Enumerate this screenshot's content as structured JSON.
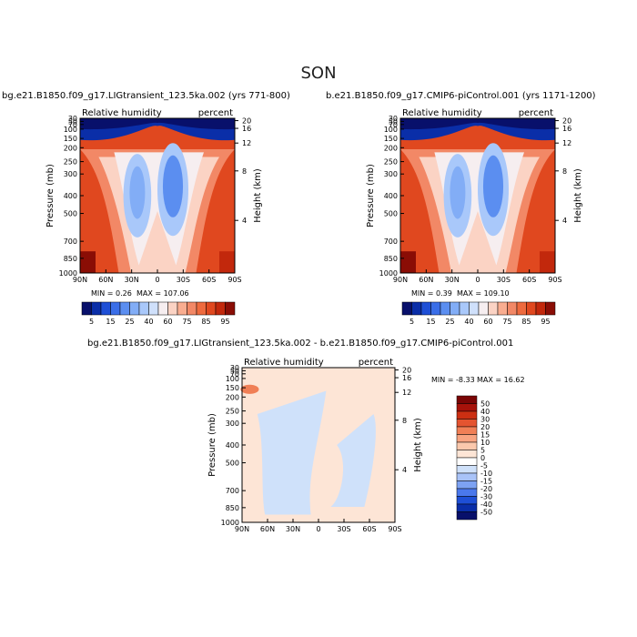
{
  "figure": {
    "season": "SON"
  },
  "colors": {
    "rh_palette": [
      "#08106b",
      "#0a2ea8",
      "#1e4fd6",
      "#3a6ee8",
      "#5b8ef0",
      "#82adf6",
      "#a9c8fa",
      "#cfe0fb",
      "#f6eef0",
      "#fbd3c4",
      "#f9ad90",
      "#f28866",
      "#ee6a3e",
      "#e0481f",
      "#c2280c",
      "#8a0d05"
    ],
    "diff_palette": [
      "#08106b",
      "#0a2ea8",
      "#1e4fd6",
      "#4a78ec",
      "#7da2f3",
      "#a9c3f8",
      "#cfe1fa",
      "#ffffff",
      "#fde5d6",
      "#fbc8ac",
      "#f8a481",
      "#f07f56",
      "#e45430",
      "#cc2f12",
      "#a7120a",
      "#7a0505"
    ]
  },
  "chart_data": [
    {
      "type": "heatmap",
      "title": "bg.e21.B1850.f09_g17.LIGtransient_123.5ka.002 (yrs 771-800)",
      "left_label": "Relative humidity",
      "right_label": "percent",
      "ylabel": "Pressure (mb)",
      "y2label": "Height (km)",
      "xticks": [
        "90N",
        "60N",
        "30N",
        "0",
        "30S",
        "60S",
        "90S"
      ],
      "yticks": [
        "1000",
        "850",
        "700",
        "500",
        "400",
        "300",
        "250",
        "200",
        "150",
        "100",
        "70",
        "50",
        "30"
      ],
      "y2ticks": [
        "20",
        "16",
        "12",
        "8",
        "4"
      ],
      "min_label": "MIN =   0.26",
      "max_label": "MAX = 107.06",
      "colorbar_labels": [
        "5",
        "15",
        "25",
        "40",
        "60",
        "75",
        "85",
        "95"
      ]
    },
    {
      "type": "heatmap",
      "title": "b.e21.B1850.f09_g17.CMIP6-piControl.001 (yrs 1171-1200)",
      "left_label": "Relative humidity",
      "right_label": "percent",
      "ylabel": "Pressure (mb)",
      "y2label": "Height (km)",
      "xticks": [
        "90N",
        "60N",
        "30N",
        "0",
        "30S",
        "60S",
        "90S"
      ],
      "yticks": [
        "1000",
        "850",
        "700",
        "500",
        "400",
        "300",
        "250",
        "200",
        "150",
        "100",
        "70",
        "50",
        "30"
      ],
      "y2ticks": [
        "20",
        "16",
        "12",
        "8",
        "4"
      ],
      "min_label": "MIN =   0.39",
      "max_label": "MAX = 109.10",
      "colorbar_labels": [
        "5",
        "15",
        "25",
        "40",
        "60",
        "75",
        "85",
        "95"
      ]
    },
    {
      "type": "heatmap",
      "title": "bg.e21.B1850.f09_g17.LIGtransient_123.5ka.002 - b.e21.B1850.f09_g17.CMIP6-piControl.001",
      "left_label": "Relative humidity",
      "right_label": "percent",
      "ylabel": "Pressure (mb)",
      "y2label": "Height (km)",
      "xticks": [
        "90N",
        "60N",
        "30N",
        "0",
        "30S",
        "60S",
        "90S"
      ],
      "yticks": [
        "1000",
        "850",
        "700",
        "500",
        "400",
        "300",
        "250",
        "200",
        "150",
        "100",
        "70",
        "50",
        "30"
      ],
      "y2ticks": [
        "20",
        "16",
        "12",
        "8",
        "4"
      ],
      "min_label": "MIN =   -8.33",
      "max_label": "MAX =   16.62",
      "colorbar_labels": [
        "50",
        "40",
        "30",
        "20",
        "15",
        "10",
        "5",
        "0",
        "-5",
        "-10",
        "-15",
        "-20",
        "-30",
        "-40",
        "-50"
      ]
    }
  ]
}
